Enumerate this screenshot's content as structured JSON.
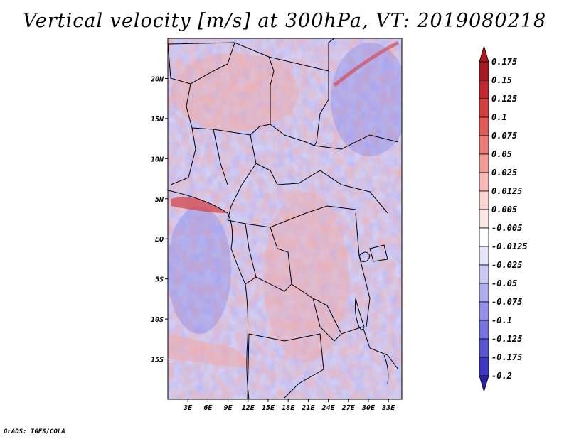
{
  "title": "Vertical velocity [m/s] at 300hPa, VT: 2019080218",
  "credit": "GrADS: IGES/COLA",
  "map": {
    "lon_range": [
      0,
      35
    ],
    "lat_range": [
      -20,
      25
    ],
    "lat_labels": [
      {
        "lat": 20,
        "label": "20N"
      },
      {
        "lat": 15,
        "label": "15N"
      },
      {
        "lat": 10,
        "label": "10N"
      },
      {
        "lat": 5,
        "label": "5N"
      },
      {
        "lat": 0,
        "label": "EQ"
      },
      {
        "lat": -5,
        "label": "5S"
      },
      {
        "lat": -10,
        "label": "10S"
      },
      {
        "lat": -15,
        "label": "15S"
      }
    ],
    "lon_labels": [
      {
        "lon": 3,
        "label": "3E"
      },
      {
        "lon": 6,
        "label": "6E"
      },
      {
        "lon": 9,
        "label": "9E"
      },
      {
        "lon": 12,
        "label": "12E"
      },
      {
        "lon": 15,
        "label": "15E"
      },
      {
        "lon": 18,
        "label": "18E"
      },
      {
        "lon": 21,
        "label": "21E"
      },
      {
        "lon": 24,
        "label": "24E"
      },
      {
        "lon": 27,
        "label": "27E"
      },
      {
        "lon": 30,
        "label": "30E"
      },
      {
        "lon": 33,
        "label": "33E"
      }
    ]
  },
  "colorbar": {
    "levels": [
      {
        "label": "0.175",
        "color": "#a81a1f"
      },
      {
        "label": "0.15",
        "color": "#c1272d"
      },
      {
        "label": "0.125",
        "color": "#d33f3f"
      },
      {
        "label": "0.1",
        "color": "#e15a58"
      },
      {
        "label": "0.075",
        "color": "#ec7a75"
      },
      {
        "label": "0.05",
        "color": "#f39a94"
      },
      {
        "label": "0.025",
        "color": "#f8b8b3"
      },
      {
        "label": "0.0125",
        "color": "#fbd3cf"
      },
      {
        "label": "0.005",
        "color": "#fde7e4"
      },
      {
        "label": "-0.005",
        "color": "#ffffff"
      },
      {
        "label": "-0.0125",
        "color": "#e4e4fb"
      },
      {
        "label": "-0.025",
        "color": "#c9c9f6"
      },
      {
        "label": "-0.05",
        "color": "#aeadf0"
      },
      {
        "label": "-0.075",
        "color": "#9290ea"
      },
      {
        "label": "-0.1",
        "color": "#7573e2"
      },
      {
        "label": "-0.125",
        "color": "#5755d6"
      },
      {
        "label": "-0.175",
        "color": "#3a38c4"
      },
      {
        "label": "-0.2",
        "color": "#2a23ad"
      }
    ],
    "top_color": "#b2181f",
    "bottom_color": "#2a1fa8"
  }
}
